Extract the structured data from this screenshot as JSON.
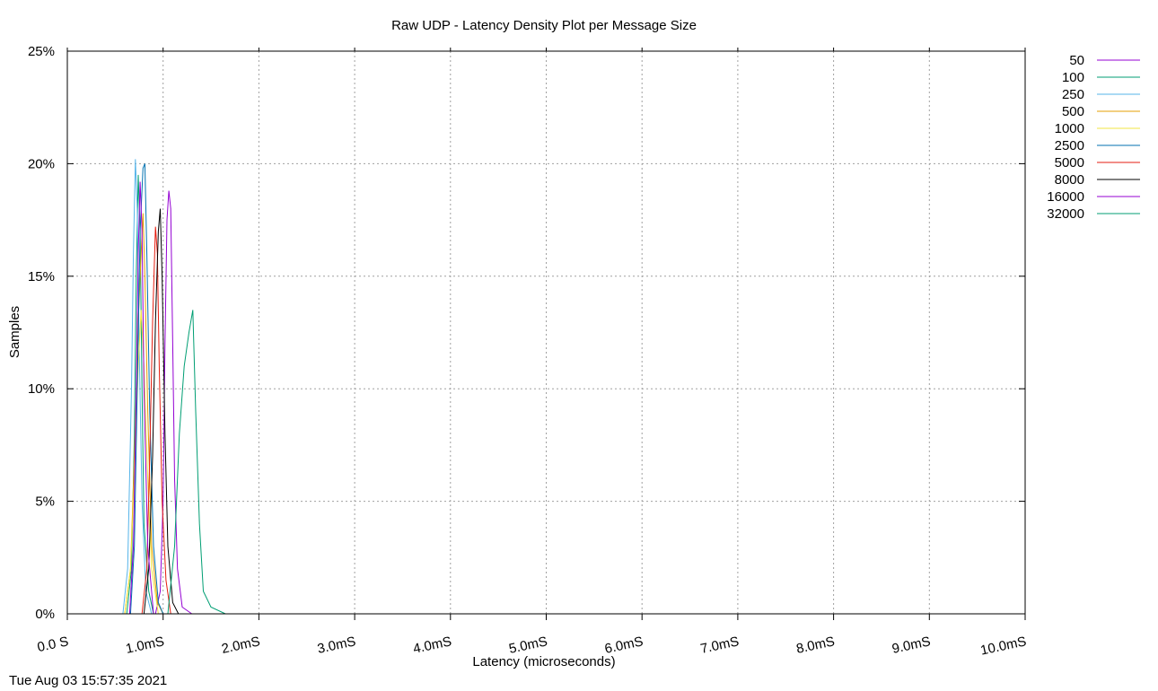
{
  "chart_data": {
    "type": "line",
    "title": "Raw UDP - Latency Density Plot per Message Size",
    "xlabel": "Latency (microseconds)",
    "ylabel": "Samples",
    "xlim": [
      0,
      10
    ],
    "ylim": [
      0,
      25
    ],
    "x_ticks": [
      0,
      1,
      2,
      3,
      4,
      5,
      6,
      7,
      8,
      9,
      10
    ],
    "x_tick_labels": [
      "0.0 S",
      "1.0mS",
      "2.0mS",
      "3.0mS",
      "4.0mS",
      "5.0mS",
      "6.0mS",
      "7.0mS",
      "8.0mS",
      "9.0mS",
      "10.0mS"
    ],
    "y_ticks": [
      0,
      5,
      10,
      15,
      20,
      25
    ],
    "y_tick_labels": [
      "0%",
      "5%",
      "10%",
      "15%",
      "20%",
      "25%"
    ],
    "grid": true,
    "legend_position": "right, outside plot",
    "series": [
      {
        "name": "50",
        "color": "#9400d3",
        "points": [
          [
            0.92,
            0
          ],
          [
            0.97,
            1
          ],
          [
            1.0,
            5
          ],
          [
            1.02,
            12
          ],
          [
            1.04,
            17.5
          ],
          [
            1.06,
            18.8
          ],
          [
            1.08,
            18
          ],
          [
            1.1,
            12
          ],
          [
            1.12,
            6
          ],
          [
            1.15,
            2
          ],
          [
            1.2,
            0.3
          ],
          [
            1.3,
            0
          ]
        ]
      },
      {
        "name": "100",
        "color": "#009e73",
        "points": [
          [
            0.62,
            0
          ],
          [
            0.67,
            2
          ],
          [
            0.7,
            8
          ],
          [
            0.72,
            15
          ],
          [
            0.74,
            19.5
          ],
          [
            0.76,
            17
          ],
          [
            0.78,
            10
          ],
          [
            0.8,
            4
          ],
          [
            0.85,
            1
          ],
          [
            0.9,
            0
          ]
        ]
      },
      {
        "name": "250",
        "color": "#56b4e9",
        "points": [
          [
            0.58,
            0
          ],
          [
            0.63,
            2
          ],
          [
            0.67,
            10
          ],
          [
            0.69,
            16
          ],
          [
            0.71,
            20.2
          ],
          [
            0.73,
            18
          ],
          [
            0.75,
            12
          ],
          [
            0.78,
            5
          ],
          [
            0.82,
            1
          ],
          [
            0.88,
            0
          ]
        ]
      },
      {
        "name": "500",
        "color": "#e69f00",
        "points": [
          [
            0.6,
            0
          ],
          [
            0.66,
            2
          ],
          [
            0.7,
            7
          ],
          [
            0.74,
            13
          ],
          [
            0.77,
            16
          ],
          [
            0.79,
            17.8
          ],
          [
            0.81,
            15
          ],
          [
            0.84,
            9
          ],
          [
            0.88,
            3
          ],
          [
            0.94,
            0.5
          ],
          [
            1.0,
            0
          ]
        ]
      },
      {
        "name": "1000",
        "color": "#f0e442",
        "points": [
          [
            0.6,
            0
          ],
          [
            0.66,
            2
          ],
          [
            0.7,
            6
          ],
          [
            0.74,
            11
          ],
          [
            0.77,
            13.5
          ],
          [
            0.8,
            11
          ],
          [
            0.84,
            6
          ],
          [
            0.88,
            2
          ],
          [
            0.95,
            0
          ]
        ]
      },
      {
        "name": "2500",
        "color": "#0072b2",
        "points": [
          [
            0.66,
            0
          ],
          [
            0.7,
            3
          ],
          [
            0.73,
            10
          ],
          [
            0.76,
            17
          ],
          [
            0.79,
            19.8
          ],
          [
            0.81,
            20
          ],
          [
            0.83,
            16
          ],
          [
            0.86,
            9
          ],
          [
            0.9,
            3
          ],
          [
            0.95,
            0.5
          ],
          [
            1.0,
            0
          ]
        ]
      },
      {
        "name": "5000",
        "color": "#e51e10",
        "points": [
          [
            0.78,
            0
          ],
          [
            0.83,
            2
          ],
          [
            0.86,
            7
          ],
          [
            0.89,
            13
          ],
          [
            0.92,
            17.2
          ],
          [
            0.94,
            16
          ],
          [
            0.96,
            11
          ],
          [
            0.99,
            5
          ],
          [
            1.03,
            1.5
          ],
          [
            1.08,
            0
          ]
        ]
      },
      {
        "name": "8000",
        "color": "#000000",
        "points": [
          [
            0.8,
            0
          ],
          [
            0.85,
            2
          ],
          [
            0.89,
            7
          ],
          [
            0.92,
            13
          ],
          [
            0.95,
            17
          ],
          [
            0.97,
            18
          ],
          [
            0.99,
            15
          ],
          [
            1.02,
            8
          ],
          [
            1.05,
            3
          ],
          [
            1.1,
            0.5
          ],
          [
            1.16,
            0
          ]
        ]
      },
      {
        "name": "16000",
        "color": "#9400d3",
        "points": [
          [
            0.65,
            0
          ],
          [
            0.69,
            3
          ],
          [
            0.72,
            10
          ],
          [
            0.74,
            16
          ],
          [
            0.76,
            19.2
          ],
          [
            0.78,
            17
          ],
          [
            0.8,
            10
          ],
          [
            0.84,
            3
          ],
          [
            0.9,
            0
          ]
        ]
      },
      {
        "name": "32000",
        "color": "#009e73",
        "points": [
          [
            1.05,
            0
          ],
          [
            1.12,
            3
          ],
          [
            1.17,
            8
          ],
          [
            1.22,
            11
          ],
          [
            1.27,
            12.5
          ],
          [
            1.31,
            13.5
          ],
          [
            1.34,
            9
          ],
          [
            1.38,
            4
          ],
          [
            1.42,
            1
          ],
          [
            1.5,
            0.3
          ],
          [
            1.65,
            0
          ]
        ]
      }
    ]
  },
  "footer": {
    "timestamp": "Tue Aug 03 15:57:35 2021"
  }
}
